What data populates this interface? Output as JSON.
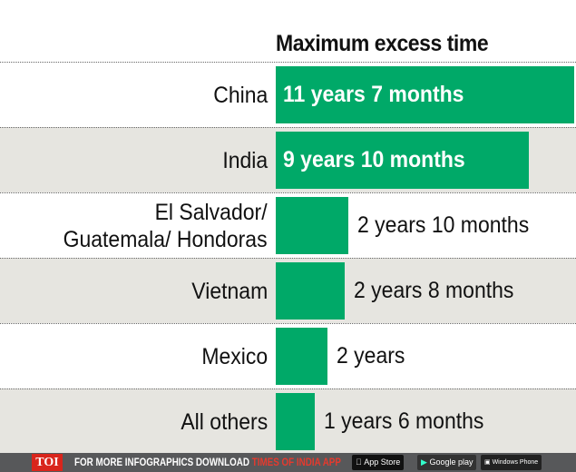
{
  "chart_data": {
    "type": "bar",
    "orientation": "horizontal",
    "title": "Maximum excess time",
    "categories": [
      "China",
      "India",
      "El Salvador/\nGuatemala/ Hondoras",
      "Vietnam",
      "Mexico",
      "All others"
    ],
    "values_months": [
      139,
      118,
      34,
      32,
      24,
      18
    ],
    "data_labels": [
      "11 years 7 months",
      "9 years 10 months",
      "2 years 10 months",
      "2 years 8 months",
      "2 years",
      "1 years 6 months"
    ],
    "bar_color": "#00a968",
    "row_colors": [
      "#ffffff",
      "#e6e5e0"
    ],
    "grid": false
  },
  "footer": {
    "logo": "TOI",
    "text": "FOR MORE  INFOGRAPHICS DOWNLOAD ",
    "app_text": "TIMES OF INDIA  APP",
    "app_store": "App Store",
    "google_play": "Google play",
    "windows_phone": "Windows Phone"
  }
}
